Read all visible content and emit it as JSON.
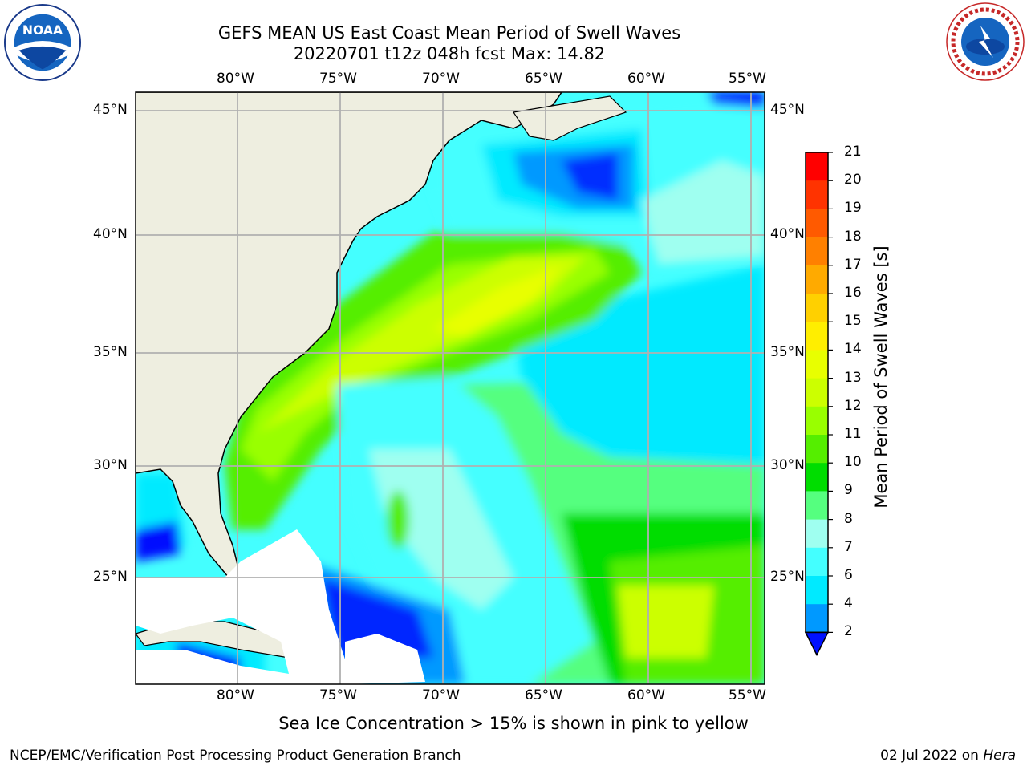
{
  "title": {
    "line1": "GEFS MEAN US East Coast Mean Period of Swell Waves",
    "line2": "20220701 t12z 048h fcst   Max: 14.82"
  },
  "axes": {
    "lon_labels": [
      "80°W",
      "75°W",
      "70°W",
      "65°W",
      "60°W",
      "55°W"
    ],
    "lat_labels": [
      "45°N",
      "40°N",
      "35°N",
      "30°N",
      "25°N"
    ]
  },
  "colorbar": {
    "label": "Mean Period of Swell Waves [s]",
    "ticks": [
      "21",
      "20",
      "19",
      "18",
      "17",
      "16",
      "15",
      "14",
      "13",
      "12",
      "11",
      "10",
      "9",
      "8",
      "7",
      "6",
      "4",
      "2"
    ],
    "colors": [
      "#ff0000",
      "#ff3300",
      "#ff5a00",
      "#ff8000",
      "#ffaa00",
      "#ffd000",
      "#ffee00",
      "#e8ff00",
      "#ccff00",
      "#99ff00",
      "#55ee00",
      "#00dd00",
      "#55ff7f",
      "#9ffff0",
      "#44ffff",
      "#00eaff",
      "#0099ff",
      "#0011ff"
    ]
  },
  "caption": "Sea Ice Concentration > 15% is shown in pink to yellow",
  "footer": {
    "left": "NCEP/EMC/Verification Post Processing Product Generation Branch",
    "date": "02 Jul 2022 on ",
    "host": "Hera"
  },
  "logos": {
    "noaa_text": "NOAA",
    "nws_text": "NATIONAL WEATHER SERVICE"
  }
}
